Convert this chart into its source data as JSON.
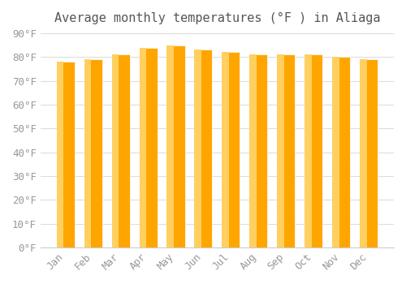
{
  "months": [
    "Jan",
    "Feb",
    "Mar",
    "Apr",
    "May",
    "Jun",
    "Jul",
    "Aug",
    "Sep",
    "Oct",
    "Nov",
    "Dec"
  ],
  "values": [
    78,
    79,
    81,
    84,
    85,
    83,
    82,
    81,
    81,
    81,
    80,
    79
  ],
  "bar_color_light": "#FFD060",
  "bar_color_dark": "#FFA500",
  "title": "Average monthly temperatures (°F ) in Aliaga",
  "ylim": [
    0,
    90
  ],
  "yticks": [
    0,
    10,
    20,
    30,
    40,
    50,
    60,
    70,
    80,
    90
  ],
  "ytick_labels": [
    "0°F",
    "10°F",
    "20°F",
    "30°F",
    "40°F",
    "50°F",
    "60°F",
    "70°F",
    "80°F",
    "90°F"
  ],
  "background_color": "#ffffff",
  "grid_color": "#dddddd",
  "title_fontsize": 11,
  "tick_fontsize": 9,
  "font_family": "monospace"
}
